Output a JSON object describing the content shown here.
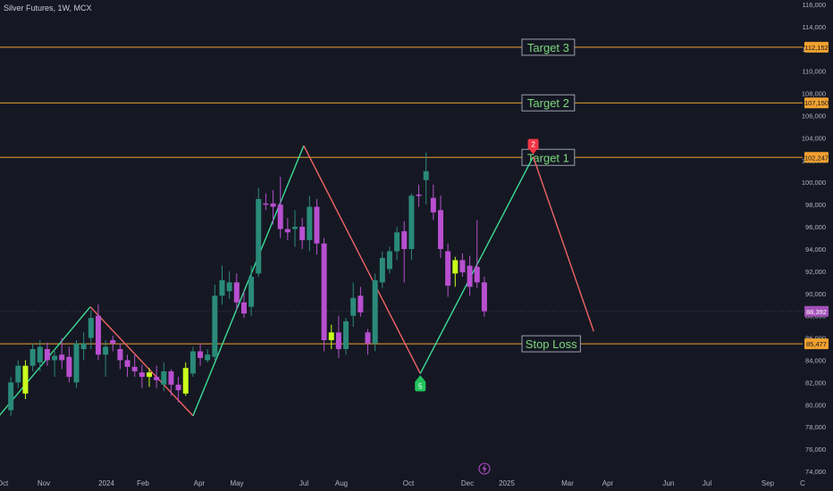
{
  "header": {
    "title": "Silver Futures, 1W, MCX"
  },
  "chart_data": {
    "type": "candlestick",
    "title": "Silver Futures, 1W, MCX",
    "ylim": [
      74000,
      116000
    ],
    "y_ticks": [
      74000,
      76000,
      78000,
      80000,
      82000,
      84000,
      86000,
      88000,
      90000,
      92000,
      94000,
      96000,
      98000,
      100000,
      102000,
      104000,
      106000,
      108000,
      110000,
      112000,
      114000,
      116000
    ],
    "x_ticks": [
      "Oct",
      "Nov",
      "2024",
      "Feb",
      "Apr",
      "May",
      "Jul",
      "Aug",
      "Oct",
      "Dec",
      "2025",
      "Mar",
      "Apr",
      "Jun",
      "Jul",
      "Sep",
      "C"
    ],
    "candles": [
      {
        "o": 79500,
        "h": 82500,
        "l": 79000,
        "c": 82000,
        "col": "teal"
      },
      {
        "o": 82000,
        "h": 84000,
        "l": 81500,
        "c": 83500,
        "col": "teal"
      },
      {
        "o": 81000,
        "h": 84000,
        "l": 80500,
        "c": 83500,
        "col": "lime"
      },
      {
        "o": 83500,
        "h": 85500,
        "l": 83000,
        "c": 85000,
        "col": "teal"
      },
      {
        "o": 83800,
        "h": 85800,
        "l": 83000,
        "c": 85200,
        "col": "teal"
      },
      {
        "o": 85000,
        "h": 85600,
        "l": 83500,
        "c": 84000,
        "col": "magenta"
      },
      {
        "o": 84000,
        "h": 85000,
        "l": 82500,
        "c": 84400,
        "col": "teal"
      },
      {
        "o": 84500,
        "h": 86000,
        "l": 83200,
        "c": 84000,
        "col": "magenta"
      },
      {
        "o": 84300,
        "h": 85200,
        "l": 82000,
        "c": 82500,
        "col": "magenta"
      },
      {
        "o": 82000,
        "h": 85800,
        "l": 81500,
        "c": 85500,
        "col": "teal"
      },
      {
        "o": 85000,
        "h": 86500,
        "l": 84000,
        "c": 85500,
        "col": "teal"
      },
      {
        "o": 86000,
        "h": 88500,
        "l": 85000,
        "c": 87800,
        "col": "teal"
      },
      {
        "o": 88000,
        "h": 89000,
        "l": 84000,
        "c": 84500,
        "col": "magenta"
      },
      {
        "o": 84500,
        "h": 85800,
        "l": 82500,
        "c": 85200,
        "col": "teal"
      },
      {
        "o": 85800,
        "h": 86200,
        "l": 84800,
        "c": 85500,
        "col": "magenta"
      },
      {
        "o": 85000,
        "h": 85500,
        "l": 83200,
        "c": 84000,
        "col": "magenta"
      },
      {
        "o": 84000,
        "h": 84500,
        "l": 82500,
        "c": 83400,
        "col": "magenta"
      },
      {
        "o": 83400,
        "h": 84500,
        "l": 82500,
        "c": 83000,
        "col": "magenta"
      },
      {
        "o": 82900,
        "h": 83600,
        "l": 81500,
        "c": 82500,
        "col": "magenta"
      },
      {
        "o": 82500,
        "h": 83300,
        "l": 81600,
        "c": 82900,
        "col": "lime"
      },
      {
        "o": 82500,
        "h": 83500,
        "l": 81500,
        "c": 82200,
        "col": "magenta"
      },
      {
        "o": 81800,
        "h": 83800,
        "l": 81200,
        "c": 83000,
        "col": "teal"
      },
      {
        "o": 83000,
        "h": 83200,
        "l": 80800,
        "c": 81800,
        "col": "magenta"
      },
      {
        "o": 81800,
        "h": 82500,
        "l": 80200,
        "c": 81300,
        "col": "magenta"
      },
      {
        "o": 81000,
        "h": 83800,
        "l": 80800,
        "c": 83300,
        "col": "lime"
      },
      {
        "o": 82800,
        "h": 85200,
        "l": 82500,
        "c": 84800,
        "col": "teal"
      },
      {
        "o": 84800,
        "h": 85500,
        "l": 83500,
        "c": 84200,
        "col": "magenta"
      },
      {
        "o": 84000,
        "h": 85000,
        "l": 83800,
        "c": 84500,
        "col": "teal"
      },
      {
        "o": 84300,
        "h": 90800,
        "l": 84000,
        "c": 89800,
        "col": "teal"
      },
      {
        "o": 89800,
        "h": 92500,
        "l": 89000,
        "c": 91200,
        "col": "teal"
      },
      {
        "o": 90200,
        "h": 92000,
        "l": 89500,
        "c": 91000,
        "col": "teal"
      },
      {
        "o": 91000,
        "h": 91800,
        "l": 88500,
        "c": 89200,
        "col": "magenta"
      },
      {
        "o": 89200,
        "h": 90200,
        "l": 87800,
        "c": 88200,
        "col": "magenta"
      },
      {
        "o": 88800,
        "h": 92500,
        "l": 88000,
        "c": 91500,
        "col": "teal"
      },
      {
        "o": 91800,
        "h": 99500,
        "l": 91500,
        "c": 98500,
        "col": "teal"
      },
      {
        "o": 98100,
        "h": 99000,
        "l": 97500,
        "c": 98000,
        "col": "magenta"
      },
      {
        "o": 98100,
        "h": 99300,
        "l": 96200,
        "c": 97800,
        "col": "magenta"
      },
      {
        "o": 98000,
        "h": 100500,
        "l": 95000,
        "c": 95800,
        "col": "magenta"
      },
      {
        "o": 95800,
        "h": 96800,
        "l": 94800,
        "c": 95500,
        "col": "magenta"
      },
      {
        "o": 95800,
        "h": 97500,
        "l": 94200,
        "c": 96000,
        "col": "teal"
      },
      {
        "o": 96000,
        "h": 96800,
        "l": 94000,
        "c": 94800,
        "col": "magenta"
      },
      {
        "o": 94800,
        "h": 98800,
        "l": 93800,
        "c": 97800,
        "col": "teal"
      },
      {
        "o": 97800,
        "h": 98500,
        "l": 93500,
        "c": 94500,
        "col": "magenta"
      },
      {
        "o": 94500,
        "h": 95000,
        "l": 84800,
        "c": 85800,
        "col": "magenta"
      },
      {
        "o": 85800,
        "h": 87200,
        "l": 85000,
        "c": 86500,
        "col": "lime"
      },
      {
        "o": 86500,
        "h": 88000,
        "l": 84200,
        "c": 85000,
        "col": "magenta"
      },
      {
        "o": 85000,
        "h": 87800,
        "l": 84500,
        "c": 87500,
        "col": "teal"
      },
      {
        "o": 88000,
        "h": 91000,
        "l": 87000,
        "c": 89600,
        "col": "teal"
      },
      {
        "o": 89800,
        "h": 90600,
        "l": 87900,
        "c": 88300,
        "col": "magenta"
      },
      {
        "o": 85500,
        "h": 86800,
        "l": 84500,
        "c": 86500,
        "col": "magenta"
      },
      {
        "o": 85500,
        "h": 91800,
        "l": 84800,
        "c": 91200,
        "col": "teal"
      },
      {
        "o": 91000,
        "h": 93800,
        "l": 90500,
        "c": 93200,
        "col": "teal"
      },
      {
        "o": 92200,
        "h": 94200,
        "l": 91800,
        "c": 93800,
        "col": "teal"
      },
      {
        "o": 93800,
        "h": 96000,
        "l": 93000,
        "c": 95500,
        "col": "teal"
      },
      {
        "o": 95600,
        "h": 96500,
        "l": 91000,
        "c": 94000,
        "col": "magenta"
      },
      {
        "o": 94000,
        "h": 99000,
        "l": 93000,
        "c": 98800,
        "col": "teal"
      },
      {
        "o": 98900,
        "h": 99800,
        "l": 97800,
        "c": 98800,
        "col": "magenta"
      },
      {
        "o": 100200,
        "h": 102700,
        "l": 98000,
        "c": 101000,
        "col": "teal"
      },
      {
        "o": 98600,
        "h": 99800,
        "l": 96600,
        "c": 97300,
        "col": "magenta"
      },
      {
        "o": 97500,
        "h": 98800,
        "l": 93200,
        "c": 94000,
        "col": "magenta"
      },
      {
        "o": 93800,
        "h": 94500,
        "l": 89700,
        "c": 90700,
        "col": "magenta"
      },
      {
        "o": 91800,
        "h": 93300,
        "l": 90600,
        "c": 93000,
        "col": "lime"
      },
      {
        "o": 93000,
        "h": 93600,
        "l": 91500,
        "c": 91900,
        "col": "magenta"
      },
      {
        "o": 92500,
        "h": 93400,
        "l": 89800,
        "c": 90600,
        "col": "magenta"
      },
      {
        "o": 92400,
        "h": 96600,
        "l": 90500,
        "c": 91000,
        "col": "magenta"
      },
      {
        "o": 91000,
        "h": 91500,
        "l": 87900,
        "c": 88400,
        "col": "magenta"
      }
    ],
    "horizontal_levels": [
      {
        "name": "Target 3",
        "value": 112152,
        "label": "112,152"
      },
      {
        "name": "Target 2",
        "value": 107150,
        "label": "107,150"
      },
      {
        "name": "Target 1",
        "value": 102247,
        "label": "102,247"
      },
      {
        "name": "Stop Loss",
        "value": 85477,
        "label": "85,477"
      }
    ],
    "last_price": {
      "value": 88392,
      "label": "88,392"
    },
    "zigzag": [
      {
        "i": -1,
        "v": 78300
      },
      {
        "i": 12.4,
        "v": 88800
      },
      {
        "i": 26.5,
        "v": 79000
      },
      {
        "i": 41.7,
        "v": 103300
      },
      {
        "i": 57.7,
        "v": 82800
      },
      {
        "i": 73.2,
        "v": 102300
      },
      {
        "i": 81.5,
        "v": 86600
      }
    ],
    "markers": [
      {
        "text": "2",
        "i": 73.2,
        "v": 102300,
        "pos": "above",
        "color": "#f23645"
      },
      {
        "text": "5",
        "i": 57.7,
        "v": 82800,
        "pos": "below",
        "color": "#22c55e"
      }
    ]
  },
  "colors": {
    "background": "#151823",
    "teal": "#2a8a7a",
    "magenta": "#b84fd0",
    "lime": "#c8ff1a",
    "level": "#f0a030",
    "axis_text": "#b2b5be",
    "zigzag_up": "#3ddc97",
    "zigzag_down": "#f06464",
    "last_price": "#a34fb8",
    "label_text": "#7dd87d"
  },
  "icons": {
    "flash": "lightning-icon"
  }
}
